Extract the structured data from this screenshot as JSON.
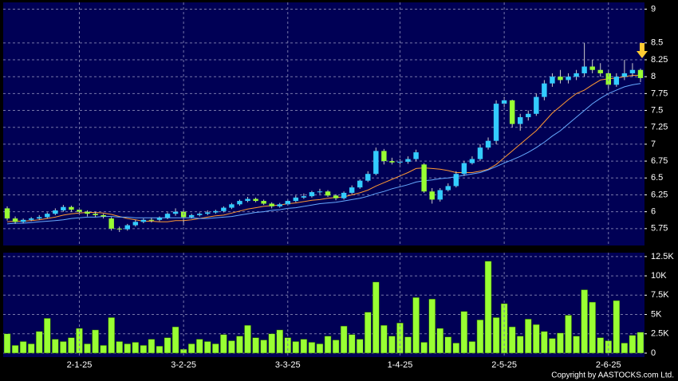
{
  "chart_data": [
    {
      "type": "candlestick",
      "up_color": "#33ccff",
      "down_color": "#99ff33",
      "ma_colors": [
        "#ff9933",
        "#66aaff"
      ],
      "open": [
        6.05,
        5.9,
        5.85,
        5.88,
        5.9,
        5.92,
        5.97,
        6.02,
        6.07,
        6.03,
        6.0,
        5.97,
        5.95,
        5.9,
        5.75,
        5.74,
        5.8,
        5.85,
        5.88,
        5.88,
        5.91,
        5.97,
        6.0,
        5.92,
        5.95,
        5.97,
        5.99,
        6.01,
        6.06,
        6.11,
        6.16,
        6.19,
        6.16,
        6.12,
        6.08,
        6.11,
        6.16,
        6.21,
        6.23,
        6.29,
        6.3,
        6.24,
        6.2,
        6.28,
        6.36,
        6.46,
        6.56,
        6.9,
        6.75,
        6.73,
        6.74,
        6.78,
        6.7,
        6.3,
        6.18,
        6.32,
        6.38,
        6.56,
        6.72,
        6.78,
        6.95,
        7.05,
        7.6,
        7.65,
        7.3,
        7.4,
        7.45,
        7.7,
        7.9,
        8.0,
        7.95,
        8.0,
        8.05,
        8.15,
        8.1,
        8.05,
        7.88,
        8.0,
        8.05,
        8.1
      ],
      "high": [
        6.08,
        5.93,
        5.9,
        5.92,
        5.95,
        5.99,
        6.05,
        6.1,
        6.09,
        6.06,
        6.02,
        6.0,
        5.97,
        5.92,
        5.78,
        5.82,
        5.88,
        5.9,
        5.91,
        5.93,
        5.99,
        6.05,
        6.03,
        5.97,
        5.99,
        6.02,
        6.03,
        6.08,
        6.13,
        6.18,
        6.22,
        6.21,
        6.18,
        6.14,
        6.13,
        6.18,
        6.24,
        6.27,
        6.31,
        6.34,
        6.32,
        6.26,
        6.3,
        6.39,
        6.48,
        6.6,
        6.95,
        6.93,
        6.8,
        6.78,
        6.82,
        6.92,
        6.72,
        6.35,
        6.35,
        6.42,
        6.6,
        6.75,
        6.82,
        7.0,
        7.1,
        7.65,
        7.7,
        7.66,
        7.45,
        7.5,
        7.75,
        7.95,
        8.05,
        8.1,
        8.05,
        8.1,
        8.5,
        8.25,
        8.2,
        8.1,
        8.05,
        8.25,
        8.2,
        8.12
      ],
      "low": [
        5.87,
        5.82,
        5.83,
        5.86,
        5.88,
        5.9,
        5.95,
        6.0,
        6.0,
        5.97,
        5.93,
        5.92,
        5.9,
        5.72,
        5.7,
        5.72,
        5.78,
        5.83,
        5.84,
        5.86,
        5.89,
        5.94,
        5.8,
        5.9,
        5.93,
        5.95,
        5.97,
        5.99,
        6.04,
        6.09,
        6.14,
        6.14,
        6.1,
        6.05,
        6.06,
        6.09,
        6.14,
        6.19,
        6.21,
        6.26,
        6.22,
        6.17,
        6.18,
        6.26,
        6.34,
        6.44,
        6.54,
        6.7,
        6.7,
        6.7,
        6.71,
        6.75,
        6.28,
        6.12,
        6.15,
        6.3,
        6.36,
        6.53,
        6.7,
        6.75,
        6.92,
        7.0,
        7.55,
        7.25,
        7.2,
        7.35,
        7.42,
        7.65,
        7.85,
        7.9,
        7.9,
        7.95,
        8.0,
        8.05,
        8.0,
        7.82,
        7.85,
        7.95,
        8.0,
        7.92
      ],
      "close": [
        5.9,
        5.85,
        5.88,
        5.9,
        5.92,
        5.97,
        6.02,
        6.07,
        6.03,
        6.0,
        5.97,
        5.95,
        5.93,
        5.75,
        5.74,
        5.8,
        5.85,
        5.88,
        5.87,
        5.91,
        5.97,
        6.0,
        5.92,
        5.95,
        5.97,
        5.99,
        6.01,
        6.06,
        6.11,
        6.16,
        6.19,
        6.16,
        6.12,
        6.08,
        6.11,
        6.16,
        6.21,
        6.23,
        6.29,
        6.3,
        6.24,
        6.2,
        6.28,
        6.36,
        6.46,
        6.56,
        6.9,
        6.75,
        6.73,
        6.74,
        6.78,
        6.88,
        6.3,
        6.18,
        6.32,
        6.38,
        6.56,
        6.72,
        6.78,
        6.95,
        7.05,
        7.6,
        7.65,
        7.3,
        7.4,
        7.45,
        7.7,
        7.9,
        8.0,
        7.95,
        8.0,
        8.05,
        8.15,
        8.1,
        8.05,
        7.88,
        8.0,
        8.05,
        8.1,
        7.98
      ],
      "ma10": [
        5.85,
        5.86,
        5.86,
        5.87,
        5.88,
        5.9,
        5.92,
        5.95,
        5.97,
        5.98,
        5.99,
        5.99,
        5.98,
        5.96,
        5.93,
        5.9,
        5.88,
        5.86,
        5.86,
        5.85,
        5.85,
        5.87,
        5.87,
        5.88,
        5.9,
        5.92,
        5.94,
        5.95,
        5.98,
        6.01,
        6.04,
        6.06,
        6.08,
        6.09,
        6.1,
        6.12,
        6.13,
        6.15,
        6.17,
        6.18,
        6.2,
        6.21,
        6.22,
        6.25,
        6.28,
        6.32,
        6.38,
        6.43,
        6.48,
        6.53,
        6.58,
        6.64,
        6.65,
        6.64,
        6.63,
        6.61,
        6.58,
        6.58,
        6.58,
        6.6,
        6.63,
        6.7,
        6.8,
        6.9,
        7.0,
        7.1,
        7.2,
        7.33,
        7.46,
        7.56,
        7.66,
        7.75,
        7.8,
        7.88,
        7.95,
        7.97,
        7.98,
        8.0,
        8.02,
        8.02
      ],
      "ma20": [
        5.82,
        5.83,
        5.83,
        5.84,
        5.85,
        5.86,
        5.87,
        5.88,
        5.9,
        5.91,
        5.92,
        5.92,
        5.93,
        5.93,
        5.92,
        5.92,
        5.91,
        5.91,
        5.91,
        5.91,
        5.91,
        5.91,
        5.91,
        5.91,
        5.9,
        5.9,
        5.91,
        5.92,
        5.93,
        5.95,
        5.97,
        5.99,
        6.0,
        6.02,
        6.03,
        6.05,
        6.06,
        6.08,
        6.1,
        6.12,
        6.13,
        6.14,
        6.16,
        6.18,
        6.2,
        6.23,
        6.27,
        6.3,
        6.34,
        6.37,
        6.4,
        6.44,
        6.46,
        6.47,
        6.49,
        6.5,
        6.52,
        6.54,
        6.56,
        6.58,
        6.62,
        6.67,
        6.72,
        6.77,
        6.82,
        6.88,
        6.95,
        7.03,
        7.12,
        7.2,
        7.3,
        7.4,
        7.5,
        7.6,
        7.68,
        7.75,
        7.8,
        7.85,
        7.88,
        7.9
      ],
      "ylim": [
        5.5,
        9.1
      ],
      "yticks": [
        5.75,
        6,
        6.25,
        6.5,
        6.75,
        7,
        7.25,
        7.5,
        7.75,
        8,
        8.25,
        8.5,
        9
      ],
      "grid": true
    },
    {
      "type": "bar",
      "color": "#99ff33",
      "categories": [
        null,
        null,
        null,
        null,
        null,
        null,
        null,
        null,
        null,
        "2-1-25",
        null,
        null,
        null,
        null,
        null,
        null,
        null,
        null,
        null,
        null,
        null,
        null,
        "3-2-25",
        null,
        null,
        null,
        null,
        null,
        null,
        null,
        null,
        null,
        null,
        null,
        null,
        "3-3-25",
        null,
        null,
        null,
        null,
        null,
        null,
        null,
        null,
        null,
        null,
        null,
        null,
        null,
        "1-4-25",
        null,
        null,
        null,
        null,
        null,
        null,
        null,
        null,
        null,
        null,
        null,
        null,
        "2-5-25",
        null,
        null,
        null,
        null,
        null,
        null,
        null,
        null,
        null,
        null,
        null,
        null,
        "2-6-25",
        null,
        null,
        null,
        null
      ],
      "values": [
        2500,
        1000,
        1500,
        1200,
        2800,
        4500,
        1800,
        1500,
        2000,
        3200,
        1200,
        3000,
        1000,
        4600,
        1500,
        1200,
        1400,
        1000,
        1800,
        900,
        2000,
        3400,
        500,
        1200,
        1800,
        1500,
        1200,
        2400,
        1600,
        2200,
        3600,
        2000,
        1700,
        2500,
        3000,
        2000,
        1500,
        1800,
        1400,
        1200,
        2200,
        1700,
        3500,
        2400,
        1800,
        5300,
        9200,
        3600,
        2200,
        3900,
        2100,
        7200,
        1400,
        7000,
        3200,
        2100,
        1300,
        5400,
        1500,
        4300,
        11900,
        4600,
        6400,
        3400,
        2200,
        4400,
        3700,
        2800,
        1900,
        2600,
        4900,
        2200,
        8200,
        6600,
        2000,
        1600,
        6800,
        1300,
        2300,
        2700
      ],
      "ylim": [
        0,
        13000
      ],
      "yticks": [
        0,
        {
          "value": 2500,
          "label": "2.5K"
        },
        {
          "value": 5000,
          "label": "5K"
        },
        {
          "value": 7500,
          "label": "7.5K"
        },
        {
          "value": 10000,
          "label": "10K"
        },
        {
          "value": 12500,
          "label": "12.5K"
        }
      ],
      "grid": true
    }
  ],
  "footer": "Copyright by AASTOCKS.com Ltd."
}
